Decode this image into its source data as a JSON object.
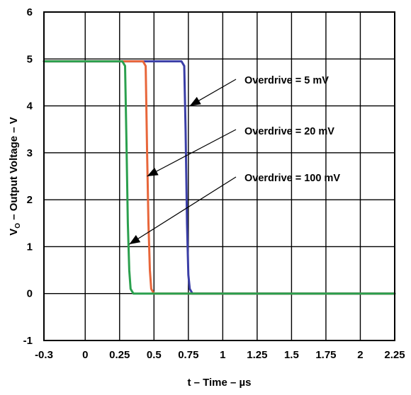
{
  "chart_data": {
    "type": "line",
    "xlabel": "t – Time – µs",
    "ylabel_main": "V",
    "ylabel_sub": "O",
    "ylabel_rest": " – Output Voltage – V",
    "xlim": [
      -0.3,
      2.25
    ],
    "ylim": [
      -1,
      6
    ],
    "xticks": [
      -0.3,
      0,
      0.25,
      0.5,
      0.75,
      1,
      1.25,
      1.5,
      1.75,
      2,
      2.25
    ],
    "xtick_labels": [
      "-0.3",
      "0",
      "0.25",
      "0.5",
      "0.75",
      "1",
      "1.25",
      "1.5",
      "1.75",
      "2",
      "2.25"
    ],
    "yticks": [
      -1,
      0,
      1,
      2,
      3,
      4,
      5,
      6
    ],
    "ytick_labels": [
      "-1",
      "0",
      "1",
      "2",
      "3",
      "4",
      "5",
      "6"
    ],
    "grid": true,
    "series": [
      {
        "name": "Overdrive = 5 mV",
        "color": "#3a3ea6",
        "x": [
          -0.3,
          0.7,
          0.72,
          0.73,
          0.74,
          0.75,
          0.76,
          0.78,
          0.82,
          2.25
        ],
        "y": [
          4.95,
          4.95,
          4.85,
          3.5,
          1.5,
          0.4,
          0.1,
          0.0,
          0.0,
          0.0
        ]
      },
      {
        "name": "Overdrive = 20 mV",
        "color": "#e8663a",
        "x": [
          -0.3,
          0.42,
          0.44,
          0.45,
          0.46,
          0.47,
          0.48,
          0.5,
          0.55,
          2.25
        ],
        "y": [
          4.95,
          4.95,
          4.85,
          3.0,
          1.5,
          0.5,
          0.1,
          0.0,
          0.0,
          0.0
        ]
      },
      {
        "name": "Overdrive = 100 mV",
        "color": "#2ba04e",
        "x": [
          -0.3,
          0.27,
          0.29,
          0.3,
          0.31,
          0.32,
          0.33,
          0.35,
          0.4,
          2.25
        ],
        "y": [
          4.95,
          4.95,
          4.85,
          3.2,
          1.5,
          0.5,
          0.1,
          0.0,
          0.0,
          0.0
        ]
      }
    ],
    "annotations": [
      {
        "text": "Overdrive = 5 mV",
        "arrow_to_x": 0.76,
        "arrow_to_y": 4.0
      },
      {
        "text": "Overdrive = 20 mV",
        "arrow_to_x": 0.45,
        "arrow_to_y": 2.5
      },
      {
        "text": "Overdrive = 100 mV",
        "arrow_to_x": 0.32,
        "arrow_to_y": 1.05
      }
    ]
  }
}
